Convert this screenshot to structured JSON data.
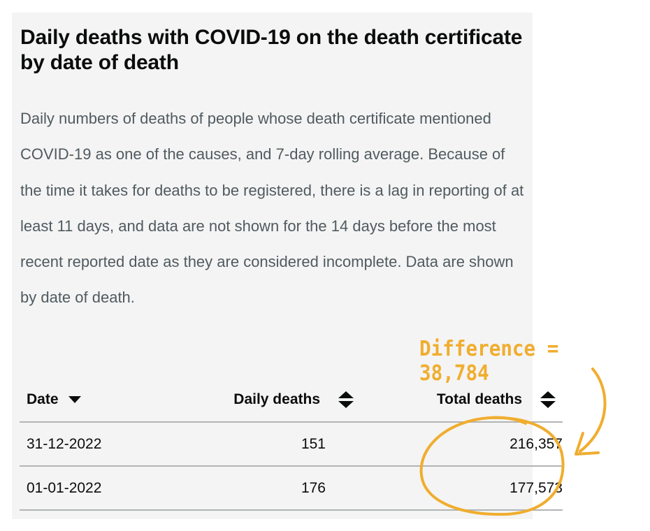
{
  "card": {
    "title": "Daily deaths with COVID-19 on the death certificate by date of death",
    "description": "Daily numbers of deaths of people whose death certificate mentioned COVID-19 as one of the causes, and 7-day rolling average. Because of the time it takes for deaths to be registered, there is a lag in reporting of at least 11 days, and data are not shown for the 14 days before the most recent reported date as they are considered incomplete. Data are shown by date of death."
  },
  "table": {
    "headers": {
      "date": "Date",
      "daily": "Daily deaths",
      "total": "Total deaths"
    },
    "sort_icons": {
      "date": "sort-descending-icon",
      "daily": "sort-both-icon",
      "total": "sort-both-icon"
    },
    "rows": [
      {
        "date": "31-12-2022",
        "daily": "151",
        "total": "216,357"
      },
      {
        "date": "01-01-2022",
        "daily": "176",
        "total": "177,573"
      }
    ]
  },
  "annotation": {
    "text": "Difference = 38,784",
    "color": "#f0ad2e"
  },
  "colors": {
    "panel_background": "#f4f4f4",
    "heading_text": "#0b0c0c",
    "body_text": "#505a5f",
    "rule": "#b1b4b6"
  }
}
